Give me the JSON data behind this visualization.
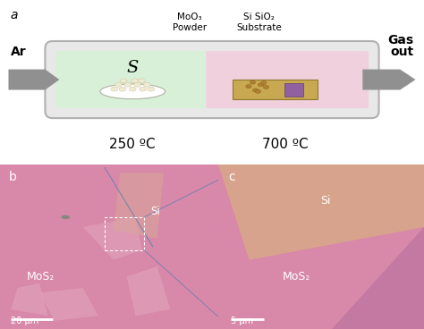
{
  "label_a": "a",
  "label_b": "b",
  "label_c": "c",
  "arrow_color": "#909090",
  "tube_left_color": "#d8f0d8",
  "tube_right_color": "#f0d0dc",
  "tube_border_color": "#b0b0b0",
  "tube_outer_color": "#e8e8e8",
  "ar_label": "Ar",
  "gas_out_label": "Gas\nout",
  "s_label": "S",
  "moo3_label": "MoO₃\nPowder",
  "sisio2_label": "Si SiO₂\nSubstrate",
  "temp_left": "250 ºC",
  "temp_right": "700 ºC",
  "scale_bar_b": "20 μm",
  "scale_bar_c": "5 μm",
  "mos2_label": "MoS₂",
  "si_label": "Si",
  "bg_main_color": "#d888a8",
  "bg_lighter_color": "#e0a0b8",
  "si_region_color": "#d8b090",
  "si_region_c_color": "#d8a888",
  "mos2_tri_color": "#c878a0",
  "substrate_color": "#c8a850",
  "purple_color": "#9060a0",
  "line_color": "#7080b0",
  "blob_color": "#888880"
}
